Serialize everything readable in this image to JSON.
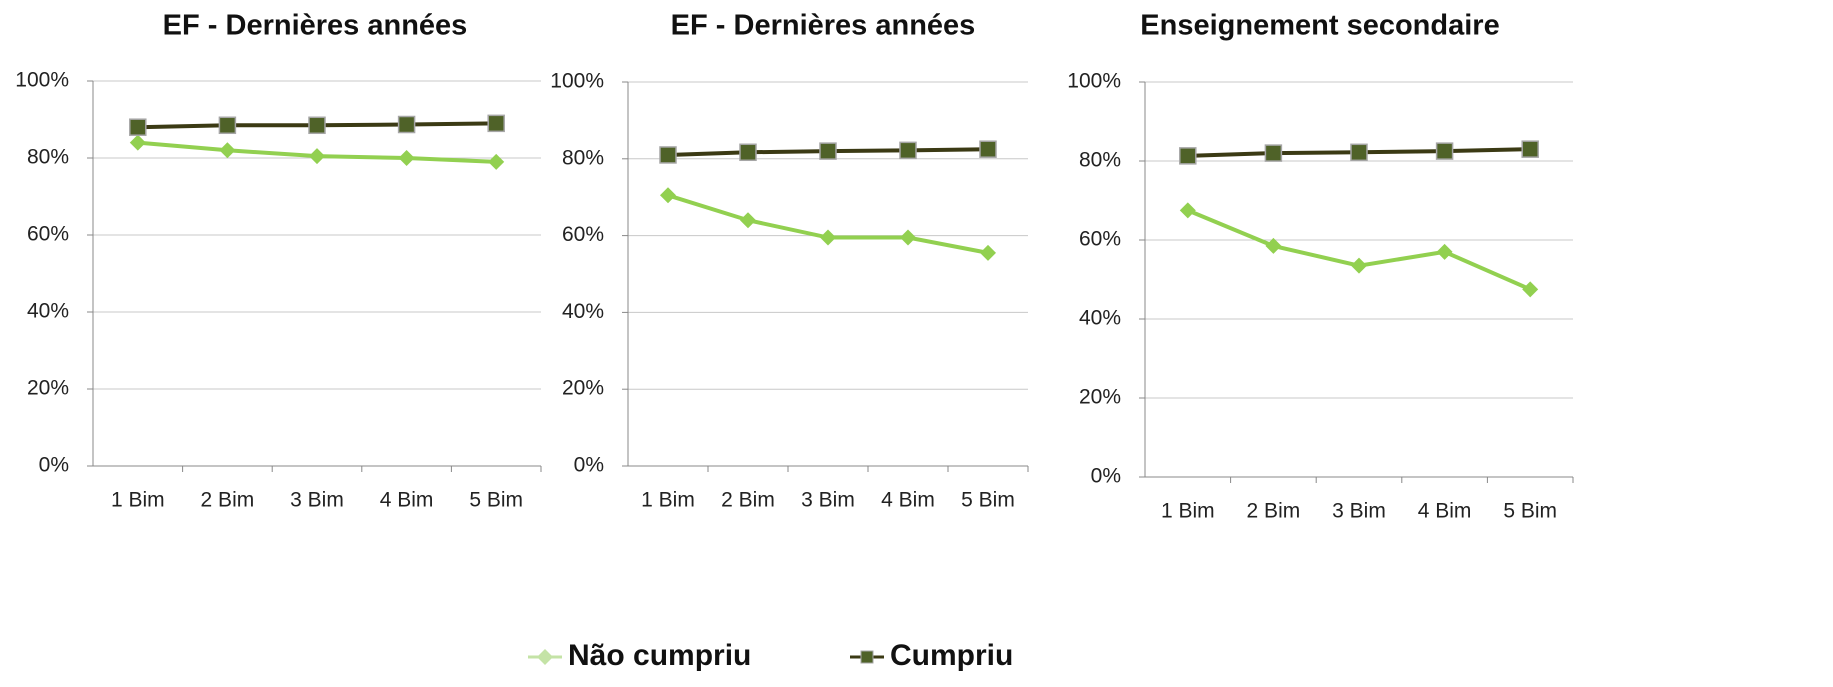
{
  "chart_data": [
    {
      "type": "line",
      "title": "EF - Dernières années",
      "categories": [
        "1 Bim",
        "2 Bim",
        "3 Bim",
        "4 Bim",
        "5 Bim"
      ],
      "series": [
        {
          "name": "Não cumpriu",
          "color": "#92d050",
          "marker": "diamond",
          "values": [
            84,
            82,
            80.5,
            80,
            79
          ]
        },
        {
          "name": "Cumpriu",
          "color": "#3b3a14",
          "marker": "square",
          "marker_color": "#4f6228",
          "values": [
            88,
            88.5,
            88.5,
            88.7,
            89
          ]
        }
      ],
      "ylim": [
        0,
        100
      ],
      "yticks": [
        {
          "value": 0,
          "label": "0%"
        },
        {
          "value": 20,
          "label": "20%"
        },
        {
          "value": 40,
          "label": "40%"
        },
        {
          "value": 60,
          "label": "60%"
        },
        {
          "value": 80,
          "label": "80%"
        },
        {
          "value": 100,
          "label": "100%"
        }
      ],
      "grid": true
    },
    {
      "type": "line",
      "title": "EF - Dernières années",
      "categories": [
        "1 Bim",
        "2 Bim",
        "3 Bim",
        "4 Bim",
        "5 Bim"
      ],
      "series": [
        {
          "name": "Não cumpriu",
          "color": "#92d050",
          "marker": "diamond",
          "values": [
            70.5,
            64,
            59.5,
            59.5,
            55.5
          ]
        },
        {
          "name": "Cumpriu",
          "color": "#3b3a14",
          "marker": "square",
          "marker_color": "#4f6228",
          "values": [
            81,
            81.7,
            82,
            82.2,
            82.5
          ]
        }
      ],
      "ylim": [
        0,
        100
      ],
      "yticks": [
        {
          "value": 0,
          "label": "0%"
        },
        {
          "value": 20,
          "label": "20%"
        },
        {
          "value": 40,
          "label": "40%"
        },
        {
          "value": 60,
          "label": "60%"
        },
        {
          "value": 80,
          "label": "80%"
        },
        {
          "value": 100,
          "label": "100%"
        }
      ],
      "grid": true
    },
    {
      "type": "line",
      "title": "Enseignement secondaire",
      "categories": [
        "1 Bim",
        "2 Bim",
        "3 Bim",
        "4 Bim",
        "5 Bim"
      ],
      "series": [
        {
          "name": "Não cumpriu",
          "color": "#92d050",
          "marker": "diamond",
          "values": [
            67.5,
            58.5,
            53.5,
            57,
            47.5
          ]
        },
        {
          "name": "Cumpriu",
          "color": "#3b3a14",
          "marker": "square",
          "marker_color": "#4f6228",
          "values": [
            81.3,
            82,
            82.2,
            82.5,
            83
          ]
        }
      ],
      "ylim": [
        0,
        100
      ],
      "yticks": [
        {
          "value": 0,
          "label": "0%"
        },
        {
          "value": 20,
          "label": "20%"
        },
        {
          "value": 40,
          "label": "40%"
        },
        {
          "value": 60,
          "label": "60%"
        },
        {
          "value": 80,
          "label": "80%"
        },
        {
          "value": 100,
          "label": "100%"
        }
      ],
      "grid": true
    }
  ]
}
